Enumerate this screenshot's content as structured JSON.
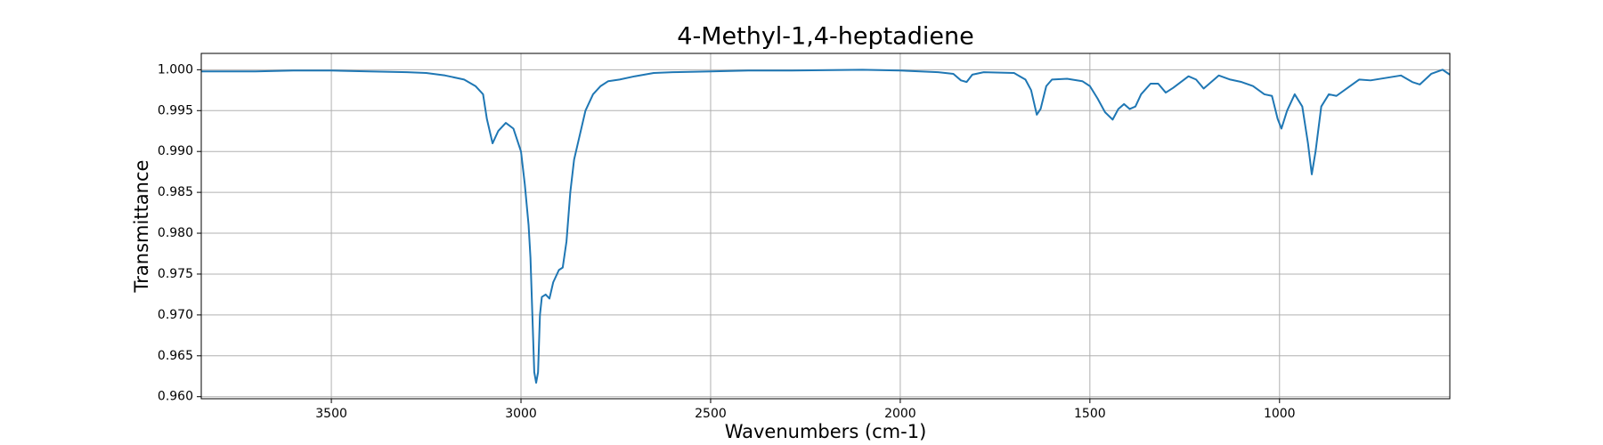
{
  "chart_data": {
    "type": "line",
    "title": "4-Methyl-1,4-heptadiene",
    "x_label": "Wavenumbers (cm-1)",
    "y_label": "Transmittance",
    "x": [
      3843,
      3700,
      3600,
      3500,
      3400,
      3300,
      3250,
      3200,
      3150,
      3120,
      3100,
      3090,
      3075,
      3060,
      3040,
      3020,
      3000,
      2990,
      2980,
      2975,
      2970,
      2965,
      2960,
      2955,
      2950,
      2945,
      2935,
      2925,
      2915,
      2900,
      2890,
      2880,
      2870,
      2860,
      2845,
      2830,
      2810,
      2790,
      2770,
      2740,
      2700,
      2650,
      2600,
      2500,
      2400,
      2300,
      2100,
      2000,
      1900,
      1860,
      1840,
      1825,
      1810,
      1780,
      1700,
      1670,
      1655,
      1640,
      1630,
      1615,
      1600,
      1560,
      1520,
      1500,
      1480,
      1460,
      1440,
      1425,
      1410,
      1395,
      1380,
      1365,
      1340,
      1320,
      1300,
      1280,
      1240,
      1220,
      1200,
      1180,
      1160,
      1130,
      1100,
      1070,
      1040,
      1020,
      1005,
      995,
      980,
      960,
      940,
      925,
      915,
      905,
      890,
      870,
      850,
      820,
      790,
      760,
      720,
      680,
      650,
      630,
      600,
      570,
      551
    ],
    "series": [
      {
        "name": "4-Methyl-1,4-heptadiene",
        "color": "#1f77b4",
        "values": [
          0.9998,
          0.9998,
          0.9999,
          0.9999,
          0.9998,
          0.9997,
          0.9996,
          0.9993,
          0.9988,
          0.998,
          0.997,
          0.994,
          0.991,
          0.9925,
          0.9935,
          0.9928,
          0.99,
          0.986,
          0.981,
          0.977,
          0.97,
          0.963,
          0.9617,
          0.963,
          0.97,
          0.9722,
          0.9725,
          0.972,
          0.974,
          0.9755,
          0.9758,
          0.979,
          0.985,
          0.989,
          0.992,
          0.995,
          0.997,
          0.998,
          0.9986,
          0.9988,
          0.9992,
          0.9996,
          0.9997,
          0.9998,
          0.9999,
          0.9999,
          1.0,
          0.9999,
          0.9997,
          0.9995,
          0.9987,
          0.9985,
          0.9994,
          0.9997,
          0.9996,
          0.9988,
          0.9975,
          0.9945,
          0.9952,
          0.998,
          0.9988,
          0.9989,
          0.9986,
          0.998,
          0.9965,
          0.9948,
          0.9939,
          0.9952,
          0.9958,
          0.9952,
          0.9955,
          0.997,
          0.9983,
          0.9983,
          0.9972,
          0.9978,
          0.9992,
          0.9988,
          0.9977,
          0.9985,
          0.9993,
          0.9988,
          0.9985,
          0.998,
          0.997,
          0.9968,
          0.994,
          0.9928,
          0.995,
          0.997,
          0.9955,
          0.991,
          0.9872,
          0.99,
          0.9955,
          0.997,
          0.9968,
          0.9978,
          0.9988,
          0.9987,
          0.999,
          0.9993,
          0.9985,
          0.9982,
          0.9995,
          1.0,
          0.9994
        ]
      }
    ],
    "xlim": [
      3843,
      551
    ],
    "ylim": [
      0.95975,
      1.002
    ],
    "xticks": [
      3500,
      3000,
      2500,
      2000,
      1500,
      1000
    ],
    "yticks": [
      {
        "value": 0.96,
        "label": "0.960"
      },
      0.965,
      {
        "value": 0.97,
        "label": "0.970"
      },
      0.975,
      {
        "value": 0.98,
        "label": "0.980"
      },
      0.985,
      {
        "value": 0.99,
        "label": "0.990"
      },
      0.995,
      {
        "value": 1.0,
        "label": "1.000"
      }
    ],
    "grid": true
  }
}
